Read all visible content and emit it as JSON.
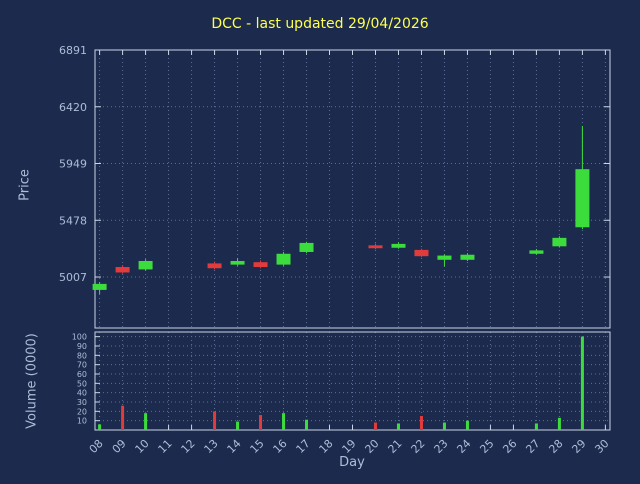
{
  "colors": {
    "background": "#1c2b4d",
    "title": "#ffff4d",
    "text": "#aebcd8",
    "grid": "#5d6f96",
    "border": "#cdd6e6",
    "up": "#3ddc3d",
    "down": "#e23b3b"
  },
  "chart_data": {
    "type": "candlestick",
    "title": "DCC - last updated 29/04/2026",
    "xlabel": "Day",
    "legend": "none",
    "grid": "dotted",
    "price_axis": {
      "label": "Price",
      "ticks": [
        5007,
        5478,
        5949,
        6420,
        6891
      ],
      "range": [
        4584,
        6891
      ]
    },
    "volume_axis": {
      "label": "Volume (0000)",
      "ticks": [
        10,
        20,
        30,
        40,
        50,
        60,
        70,
        80,
        90,
        100
      ],
      "range": [
        0,
        105
      ]
    },
    "x_axis": {
      "tick_labels": [
        "08",
        "09",
        "10",
        "11",
        "12",
        "13",
        "14",
        "15",
        "16",
        "17",
        "18",
        "19",
        "20",
        "21",
        "22",
        "23",
        "24",
        "25",
        "26",
        "27",
        "28",
        "29",
        "30"
      ],
      "tick_days": [
        8,
        9,
        10,
        11,
        12,
        13,
        14,
        15,
        16,
        17,
        18,
        19,
        20,
        21,
        22,
        23,
        24,
        25,
        26,
        27,
        28,
        29,
        30
      ],
      "range": [
        7.8,
        30.2
      ]
    },
    "candles": [
      {
        "day": 8,
        "open": 4900,
        "high": 4965,
        "low": 4865,
        "close": 4950,
        "volume": 6
      },
      {
        "day": 9,
        "open": 5090,
        "high": 5105,
        "low": 5035,
        "close": 5045,
        "volume": 26
      },
      {
        "day": 10,
        "open": 5070,
        "high": 5155,
        "low": 5060,
        "close": 5140,
        "volume": 18
      },
      {
        "day": 13,
        "open": 5120,
        "high": 5135,
        "low": 5070,
        "close": 5080,
        "volume": 20
      },
      {
        "day": 14,
        "open": 5110,
        "high": 5165,
        "low": 5100,
        "close": 5140,
        "volume": 9
      },
      {
        "day": 15,
        "open": 5130,
        "high": 5145,
        "low": 5080,
        "close": 5090,
        "volume": 16
      },
      {
        "day": 16,
        "open": 5110,
        "high": 5215,
        "low": 5100,
        "close": 5200,
        "volume": 18
      },
      {
        "day": 17,
        "open": 5215,
        "high": 5300,
        "low": 5205,
        "close": 5290,
        "volume": 11
      },
      {
        "day": 20,
        "open": 5270,
        "high": 5285,
        "low": 5238,
        "close": 5246,
        "volume": 8
      },
      {
        "day": 21,
        "open": 5250,
        "high": 5295,
        "low": 5242,
        "close": 5282,
        "volume": 7
      },
      {
        "day": 22,
        "open": 5232,
        "high": 5242,
        "low": 5172,
        "close": 5180,
        "volume": 15
      },
      {
        "day": 23,
        "open": 5150,
        "high": 5195,
        "low": 5095,
        "close": 5185,
        "volume": 8
      },
      {
        "day": 24,
        "open": 5150,
        "high": 5205,
        "low": 5140,
        "close": 5192,
        "volume": 10
      },
      {
        "day": 27,
        "open": 5200,
        "high": 5240,
        "low": 5192,
        "close": 5228,
        "volume": 7
      },
      {
        "day": 28,
        "open": 5262,
        "high": 5345,
        "low": 5252,
        "close": 5332,
        "volume": 13
      },
      {
        "day": 29,
        "open": 5420,
        "high": 6260,
        "low": 5405,
        "close": 5902,
        "volume": 100
      }
    ]
  }
}
